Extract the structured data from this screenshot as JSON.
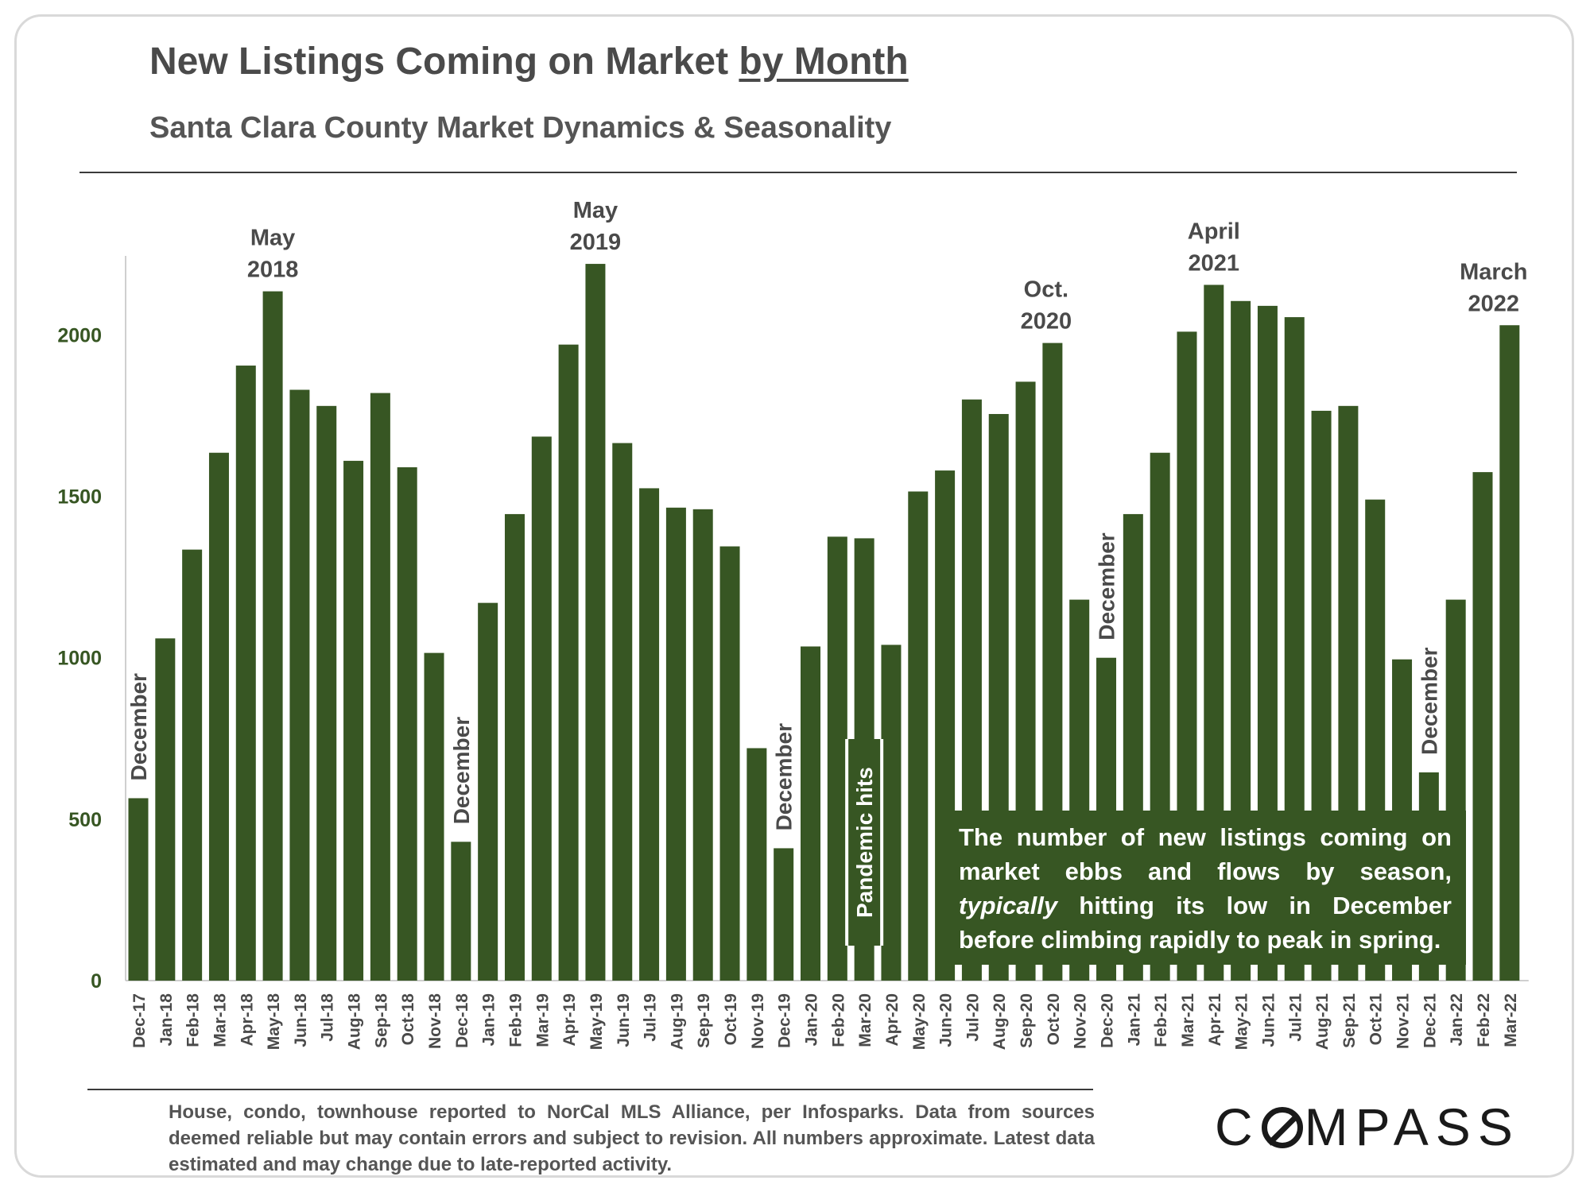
{
  "header": {
    "title_main": "New Listings Coming on Market",
    "title_emph": "by Month",
    "subtitle": "Santa Clara County Market Dynamics & Seasonality"
  },
  "chart_data": {
    "type": "bar",
    "title": "New Listings Coming on Market by Month",
    "subtitle": "Santa Clara County Market Dynamics & Seasonality",
    "xlabel": "",
    "ylabel": "",
    "ylim": [
      0,
      2230
    ],
    "yticks": [
      0,
      500,
      1000,
      1500,
      2000
    ],
    "grid": false,
    "bar_color": "#375623",
    "categories": [
      "Dec-17",
      "Jan-18",
      "Feb-18",
      "Mar-18",
      "Apr-18",
      "May-18",
      "Jun-18",
      "Jul-18",
      "Aug-18",
      "Sep-18",
      "Oct-18",
      "Nov-18",
      "Dec-18",
      "Jan-19",
      "Feb-19",
      "Mar-19",
      "Apr-19",
      "May-19",
      "Jun-19",
      "Jul-19",
      "Aug-19",
      "Sep-19",
      "Oct-19",
      "Nov-19",
      "Dec-19",
      "Jan-20",
      "Feb-20",
      "Mar-20",
      "Apr-20",
      "May-20",
      "Jun-20",
      "Jul-20",
      "Aug-20",
      "Sep-20",
      "Oct-20",
      "Nov-20",
      "Dec-20",
      "Jan-21",
      "Feb-21",
      "Mar-21",
      "Apr-21",
      "May-21",
      "Jun-21",
      "Jul-21",
      "Aug-21",
      "Sep-21",
      "Oct-21",
      "Nov-21",
      "Dec-21",
      "Jan-22",
      "Feb-22",
      "Mar-22"
    ],
    "values": [
      565,
      1060,
      1335,
      1635,
      1905,
      2135,
      1830,
      1780,
      1610,
      1820,
      1590,
      1015,
      430,
      1170,
      1445,
      1685,
      1970,
      2220,
      1665,
      1525,
      1465,
      1460,
      1345,
      720,
      410,
      1035,
      1375,
      1370,
      1040,
      1515,
      1580,
      1800,
      1755,
      1855,
      1975,
      1180,
      1000,
      1445,
      1635,
      2010,
      2155,
      2105,
      2090,
      2055,
      1765,
      1780,
      1490,
      995,
      645,
      1180,
      1575,
      2030
    ],
    "annotations": {
      "peaks": [
        {
          "index": 5,
          "lines": [
            "May",
            "2018"
          ]
        },
        {
          "index": 17,
          "lines": [
            "May",
            "2019"
          ]
        },
        {
          "index": 34,
          "lines": [
            "Oct.",
            "2020"
          ]
        },
        {
          "index": 40,
          "lines": [
            "April",
            "2021"
          ]
        },
        {
          "index": 51,
          "lines": [
            "March",
            "2022"
          ]
        }
      ],
      "december_label": "December",
      "december_indices": [
        0,
        12,
        24,
        36,
        48
      ],
      "pandemic_label": "Pandemic hits",
      "pandemic_index": 27,
      "note": {
        "part1": "The number of new listings coming on market ebbs and flows by season,",
        "emph": "typically",
        "part2": "hitting its low in December before climbing rapidly to peak in spring."
      }
    }
  },
  "footer": {
    "footnote": "House, condo, townhouse reported to NorCal MLS Alliance, per Infosparks. Data from sources deemed reliable but may contain errors and subject to revision. All numbers approximate. Latest data estimated and may change due to late-reported activity.",
    "logo_c": "C",
    "logo_rest": "MPASS"
  }
}
